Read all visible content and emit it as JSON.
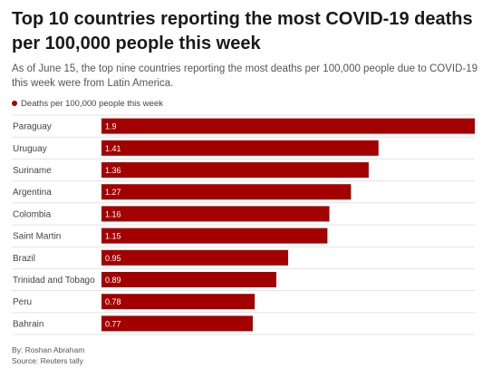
{
  "header": {
    "title": "Top 10 countries reporting the most COVID-19 deaths per 100,000 people this week",
    "subtitle": "As of June 15, the top nine countries reporting the most deaths per 100,000 people due to COVID-19 this week were from Latin America."
  },
  "colors": {
    "bar": "#a30000",
    "grid": "#e3e3e3",
    "label": "#444444"
  },
  "chart_data": {
    "type": "bar",
    "orientation": "horizontal",
    "categories": [
      "Paraguay",
      "Uruguay",
      "Suriname",
      "Argentina",
      "Colombia",
      "Saint Martin",
      "Brazil",
      "Trinidad and Tobago",
      "Peru",
      "Bahrain"
    ],
    "series": [
      {
        "name": "Deaths per 100,000 people this week",
        "values": [
          1.9,
          1.41,
          1.36,
          1.27,
          1.16,
          1.15,
          0.95,
          0.89,
          0.78,
          0.77
        ]
      }
    ],
    "data_labels": [
      "1.9",
      "1.41",
      "1.36",
      "1.27",
      "1.16",
      "1.15",
      "0.95",
      "0.89",
      "0.78",
      "0.77"
    ],
    "xlim": [
      0,
      1.9
    ],
    "grid": true,
    "legend_position": "top-left"
  },
  "footer": {
    "byline": "By: Roshan Abraham",
    "source": "Source: Reuters tally"
  }
}
